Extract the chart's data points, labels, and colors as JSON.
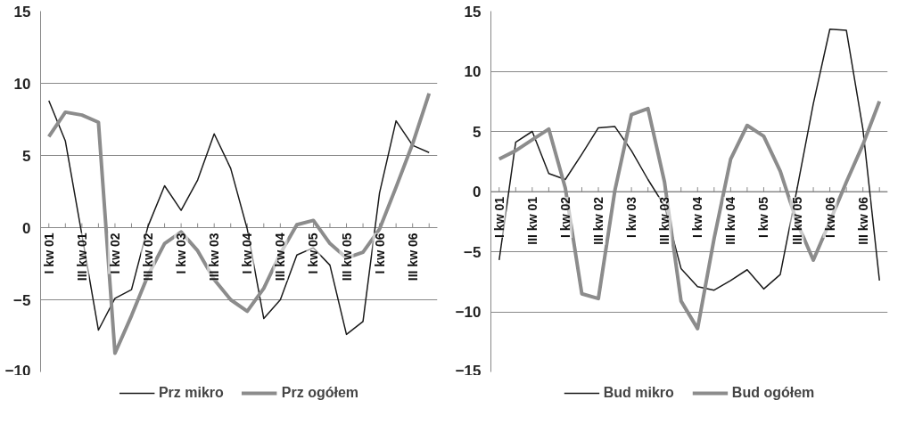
{
  "chart_data": [
    {
      "type": "line",
      "categories": [
        "I kw 01",
        null,
        "III kw 01",
        null,
        "I kw 02",
        null,
        "III kw 02",
        null,
        "I kw 03",
        null,
        "III kw 03",
        null,
        "I kw 04",
        null,
        "III kw 04",
        null,
        "I kw 05",
        null,
        "III kw 05",
        null,
        "I kw 06",
        null,
        "III kw 06",
        null
      ],
      "series": [
        {
          "name": "Prz mikro",
          "color": "#1a1a1a",
          "values": [
            8.8,
            6.0,
            -0.5,
            -7.1,
            -4.9,
            -4.3,
            0.1,
            2.9,
            1.2,
            3.3,
            6.5,
            4.1,
            -0.1,
            -6.3,
            -5.0,
            -1.9,
            -1.4,
            -2.6,
            -7.4,
            -6.5,
            2.4,
            7.4,
            5.7,
            5.2
          ]
        },
        {
          "name": "Prz ogółem",
          "color": "#8c8c8c",
          "values": [
            6.3,
            8.0,
            7.8,
            7.3,
            -8.7,
            -6.1,
            -3.3,
            -1.1,
            -0.3,
            -1.6,
            -3.6,
            -5.0,
            -5.8,
            -4.2,
            -1.8,
            0.2,
            0.5,
            -1.1,
            -2.1,
            -1.7,
            -0.1,
            2.8,
            5.8,
            9.3
          ]
        }
      ],
      "ylim": [
        -10,
        15
      ],
      "yticks": [
        -10,
        -5,
        0,
        5,
        10,
        15
      ],
      "grid": "y",
      "legend": "bottom",
      "line_style": "solid"
    },
    {
      "type": "line",
      "categories": [
        "I kw 01",
        null,
        "III kw 01",
        null,
        "I kw 02",
        null,
        "III kw 02",
        null,
        "I kw 03",
        null,
        "III kw 03",
        null,
        "I kw 04",
        null,
        "III kw 04",
        null,
        "I kw 05",
        null,
        "III kw 05",
        null,
        "I kw 06",
        null,
        "III kw 06",
        null
      ],
      "series": [
        {
          "name": "Bud mikro",
          "color": "#1a1a1a",
          "values": [
            -5.7,
            4.1,
            5.0,
            1.5,
            1.0,
            3.1,
            5.3,
            5.4,
            3.4,
            1.0,
            -1.2,
            -6.4,
            -7.9,
            -8.2,
            -7.4,
            -6.5,
            -8.1,
            -6.9,
            0.1,
            7.3,
            13.5,
            13.4,
            5.2,
            -7.4
          ]
        },
        {
          "name": "Bud ogółem",
          "color": "#8c8c8c",
          "values": [
            2.7,
            3.4,
            4.3,
            5.2,
            0.3,
            -8.5,
            -8.9,
            0.1,
            6.4,
            6.9,
            0.8,
            -9.1,
            -11.4,
            -3.9,
            2.7,
            5.5,
            4.6,
            1.7,
            -2.5,
            -5.7,
            -2.5,
            0.8,
            3.9,
            7.5
          ]
        }
      ],
      "ylim": [
        -15,
        15
      ],
      "yticks": [
        -15,
        -10,
        -5,
        0,
        5,
        10,
        15
      ],
      "grid": "y",
      "legend": "bottom",
      "line_style": "solid"
    }
  ]
}
